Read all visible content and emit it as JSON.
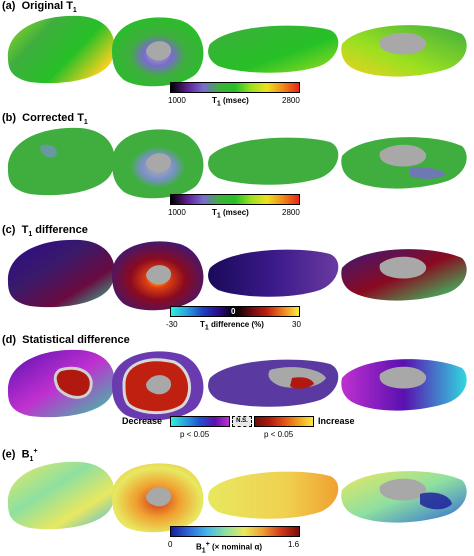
{
  "panels": [
    {
      "label": "(a)",
      "title": "Original T",
      "sub": "1",
      "colorbar": {
        "min": "1000",
        "max": "2800",
        "title": "T",
        "title_sub": "1",
        "title_rest": " (msec)"
      }
    },
    {
      "label": "(b)",
      "title": "Corrected T",
      "sub": "1",
      "colorbar": {
        "min": "1000",
        "max": "2800",
        "title": "T",
        "title_sub": "1",
        "title_rest": " (msec)"
      }
    },
    {
      "label": "(c)",
      "title": "T",
      "sub": "1",
      "title_rest": " difference",
      "colorbar": {
        "min": "-30",
        "center": "0",
        "max": "30",
        "title": "T",
        "title_sub": "1",
        "title_rest": " difference (%)"
      }
    },
    {
      "label": "(d)",
      "title": "Statistical difference",
      "colorbar": {
        "left_label": "Decrease",
        "right_label": "Increase",
        "ns_label": "N.S.",
        "left_p": "p < 0.05",
        "right_p": "p < 0.05"
      }
    },
    {
      "label": "(e)",
      "title": "B",
      "sup": "1",
      "sup2": "+",
      "colorbar": {
        "min": "0",
        "max": "1.6",
        "title": "B",
        "title_sup": "1",
        "title_sup2": "+",
        "title_rest": " (× nominal α)"
      }
    }
  ],
  "colors": {
    "t1_map": [
      "#000000",
      "#5a1e8c",
      "#7a6ad0",
      "#3fae3f",
      "#26c026",
      "#9be020",
      "#f0e020",
      "#f08a1a",
      "#e8241a"
    ],
    "diff_map": [
      "#30f0d8",
      "#2aa0e0",
      "#1e40c0",
      "#2a0a8a",
      "#000000",
      "#6a0a10",
      "#c02010",
      "#f08020",
      "#f8f040"
    ],
    "stat_map_left": [
      "#30f0d8",
      "#2aa0e0",
      "#2050d0",
      "#5a10b0",
      "#c030d0"
    ],
    "stat_map_right": [
      "#6a1008",
      "#b01810",
      "#e05010",
      "#f0a020",
      "#f8e840"
    ],
    "b1_map": [
      "#1a1a9a",
      "#2f6ad8",
      "#46b8e8",
      "#8ee0a0",
      "#e8e860",
      "#f0a030",
      "#d23a1a",
      "#7a0a0a"
    ]
  }
}
